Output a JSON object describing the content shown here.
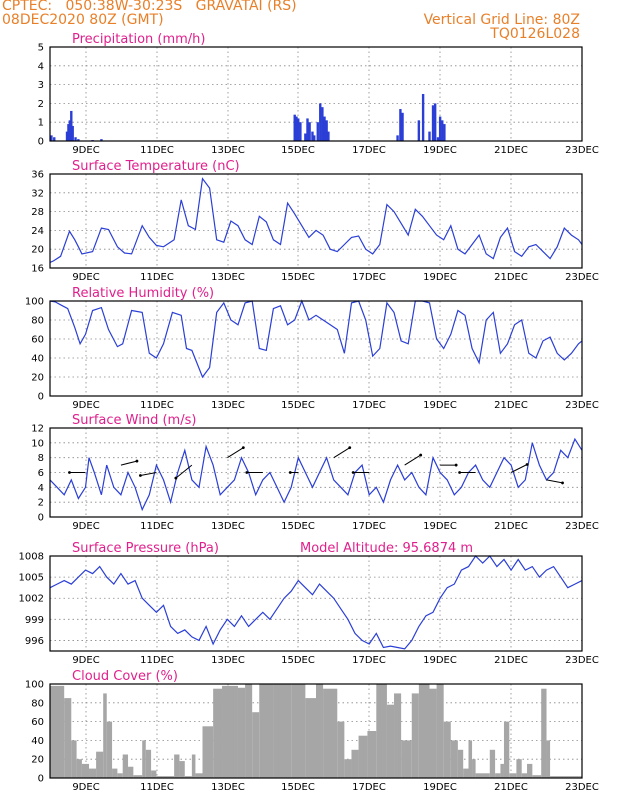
{
  "header": {
    "line1": "CPTEC:   050:38W-30:23S   GRAVATAI (RS)",
    "line2": "08DEC2020 80Z (GMT)",
    "grid_note": "Vertical Grid Line: 80Z",
    "code": "TQ0126L028"
  },
  "colors": {
    "header": "#e8802a",
    "title": "#e0208c",
    "line": "#2b3fd6",
    "cloud": "#a6a6a6"
  },
  "x_ticks": [
    "9DEC",
    "11DEC",
    "13DEC",
    "15DEC",
    "17DEC",
    "19DEC",
    "21DEC",
    "23DEC"
  ],
  "chart_data": [
    {
      "id": "precip",
      "type": "bar",
      "title": "Precipitation (mm/h)",
      "ylim": [
        0,
        5
      ],
      "yticks": [
        0,
        1,
        2,
        3,
        4,
        5
      ],
      "x_range_days": [
        0,
        15
      ],
      "bars": [
        [
          0.04,
          0.3
        ],
        [
          0.12,
          0.2
        ],
        [
          0.48,
          0.5
        ],
        [
          0.52,
          0.9
        ],
        [
          0.56,
          1.1
        ],
        [
          0.6,
          1.6
        ],
        [
          0.64,
          0.8
        ],
        [
          0.72,
          0.2
        ],
        [
          0.8,
          0.1
        ],
        [
          1.2,
          0.05
        ],
        [
          1.45,
          0.1
        ],
        [
          6.9,
          1.4
        ],
        [
          6.95,
          1.3
        ],
        [
          7.0,
          1.2
        ],
        [
          7.06,
          1.0
        ],
        [
          7.2,
          0.4
        ],
        [
          7.26,
          1.2
        ],
        [
          7.32,
          1.0
        ],
        [
          7.4,
          0.5
        ],
        [
          7.45,
          0.3
        ],
        [
          7.55,
          1.0
        ],
        [
          7.62,
          2.0
        ],
        [
          7.68,
          1.8
        ],
        [
          7.74,
          1.3
        ],
        [
          7.8,
          1.1
        ],
        [
          7.85,
          0.5
        ],
        [
          9.8,
          0.3
        ],
        [
          9.88,
          1.7
        ],
        [
          9.94,
          1.5
        ],
        [
          10.4,
          1.1
        ],
        [
          10.52,
          2.5
        ],
        [
          10.7,
          0.5
        ],
        [
          10.8,
          1.9
        ],
        [
          10.86,
          2.0
        ],
        [
          10.94,
          0.2
        ],
        [
          11.0,
          1.3
        ],
        [
          11.06,
          1.1
        ],
        [
          11.12,
          0.9
        ]
      ]
    },
    {
      "id": "temp",
      "type": "line",
      "title": "Surface Temperature (nC)",
      "ylim": [
        16,
        36
      ],
      "yticks": [
        16,
        20,
        24,
        28,
        32,
        36
      ],
      "x": [
        0,
        0.1,
        0.3,
        0.55,
        0.7,
        0.8,
        0.9,
        1.2,
        1.45,
        1.65,
        1.9,
        2.1,
        2.3,
        2.6,
        2.8,
        3.0,
        3.2,
        3.5,
        3.7,
        3.9,
        4.1,
        4.3,
        4.5,
        4.7,
        4.9,
        5.1,
        5.3,
        5.5,
        5.7,
        5.9,
        6.1,
        6.3,
        6.5,
        6.7,
        6.9,
        7.1,
        7.3,
        7.5,
        7.7,
        7.9,
        8.1,
        8.3,
        8.5,
        8.7,
        8.9,
        9.1,
        9.3,
        9.5,
        9.7,
        9.9,
        10.1,
        10.3,
        10.5,
        10.7,
        10.9,
        11.1,
        11.3,
        11.5,
        11.7,
        11.9,
        12.1,
        12.3,
        12.5,
        12.7,
        12.9,
        13.1,
        13.3,
        13.5,
        13.7,
        13.9,
        14.1,
        14.3,
        14.5,
        14.7,
        14.9,
        15.0
      ],
      "values": [
        17.2,
        17.5,
        18.5,
        23.8,
        22.0,
        20.5,
        19.0,
        19.5,
        24.5,
        24.2,
        20.5,
        19.2,
        19.0,
        25.0,
        22.5,
        20.8,
        20.5,
        22.0,
        30.5,
        25.0,
        24.2,
        35.0,
        33.0,
        22.0,
        21.5,
        26.0,
        25.0,
        22.0,
        21.0,
        27.0,
        25.8,
        22.0,
        21.0,
        29.8,
        27.5,
        25.0,
        22.5,
        24.0,
        23.0,
        20.0,
        19.5,
        21.0,
        22.5,
        22.8,
        20.0,
        19.0,
        21.0,
        29.5,
        28.0,
        25.5,
        23.0,
        28.5,
        27.0,
        25.0,
        23.0,
        22.0,
        25.0,
        20.0,
        19.0,
        21.0,
        23.0,
        19.0,
        18.0,
        22.5,
        24.5,
        19.5,
        18.5,
        20.5,
        21.0,
        19.5,
        18.0,
        20.5,
        24.5,
        23.0,
        22.0,
        21.0
      ]
    },
    {
      "id": "rh",
      "type": "line",
      "title": "Relative Humidity (%)",
      "ylim": [
        0,
        100
      ],
      "yticks": [
        0,
        20,
        40,
        60,
        80,
        100
      ],
      "x": [
        0,
        0.15,
        0.3,
        0.5,
        0.7,
        0.85,
        1.0,
        1.2,
        1.45,
        1.65,
        1.9,
        2.05,
        2.3,
        2.6,
        2.8,
        3.0,
        3.2,
        3.45,
        3.7,
        3.85,
        4.0,
        4.3,
        4.5,
        4.7,
        4.9,
        5.1,
        5.3,
        5.5,
        5.7,
        5.9,
        6.1,
        6.3,
        6.5,
        6.7,
        6.9,
        7.1,
        7.3,
        7.5,
        7.7,
        7.9,
        8.1,
        8.3,
        8.5,
        8.7,
        8.9,
        9.1,
        9.3,
        9.5,
        9.7,
        9.9,
        10.1,
        10.3,
        10.5,
        10.7,
        10.9,
        11.1,
        11.3,
        11.5,
        11.7,
        11.9,
        12.1,
        12.3,
        12.5,
        12.7,
        12.9,
        13.1,
        13.3,
        13.5,
        13.7,
        13.9,
        14.1,
        14.3,
        14.5,
        14.7,
        14.9,
        15.0
      ],
      "values": [
        100,
        99,
        96,
        92,
        72,
        55,
        65,
        90,
        93,
        70,
        52,
        55,
        90,
        88,
        45,
        40,
        55,
        88,
        85,
        50,
        48,
        20,
        30,
        88,
        98,
        80,
        75,
        98,
        100,
        50,
        48,
        92,
        95,
        75,
        80,
        100,
        80,
        85,
        80,
        75,
        70,
        45,
        98,
        100,
        80,
        42,
        50,
        98,
        88,
        58,
        55,
        100,
        100,
        98,
        60,
        50,
        65,
        90,
        85,
        50,
        35,
        80,
        88,
        45,
        55,
        75,
        80,
        45,
        40,
        58,
        62,
        45,
        38,
        45,
        55,
        58
      ]
    },
    {
      "id": "wind",
      "type": "line",
      "title": "Surface Wind (m/s)",
      "ylim": [
        0,
        12
      ],
      "yticks": [
        0,
        2,
        4,
        6,
        8,
        10,
        12
      ],
      "x": [
        0,
        0.2,
        0.4,
        0.6,
        0.8,
        1.0,
        1.1,
        1.25,
        1.45,
        1.6,
        1.8,
        2.0,
        2.2,
        2.4,
        2.6,
        2.8,
        3.0,
        3.2,
        3.4,
        3.6,
        3.8,
        4.0,
        4.2,
        4.4,
        4.6,
        4.8,
        5.0,
        5.2,
        5.4,
        5.6,
        5.8,
        6.0,
        6.2,
        6.4,
        6.6,
        6.8,
        7.0,
        7.2,
        7.4,
        7.6,
        7.8,
        8.0,
        8.2,
        8.4,
        8.6,
        8.8,
        9.0,
        9.2,
        9.4,
        9.6,
        9.8,
        10.0,
        10.2,
        10.4,
        10.6,
        10.8,
        11.0,
        11.2,
        11.4,
        11.6,
        11.8,
        12.0,
        12.2,
        12.4,
        12.6,
        12.8,
        13.0,
        13.2,
        13.4,
        13.6,
        13.8,
        14.0,
        14.2,
        14.4,
        14.6,
        14.8,
        15.0
      ],
      "values": [
        5,
        4,
        3,
        5,
        2.5,
        4,
        8,
        6,
        3,
        7,
        4,
        3,
        6,
        4,
        1,
        3,
        7,
        5,
        2,
        6,
        9,
        5,
        4,
        9.5,
        7,
        3,
        4,
        5,
        8,
        6,
        3,
        5,
        6,
        4,
        2,
        4,
        8,
        6,
        4,
        6,
        8,
        5,
        4,
        3,
        6,
        7,
        3,
        4,
        2,
        5,
        7,
        5,
        6,
        4,
        3,
        8,
        6,
        5,
        3,
        4,
        6,
        7,
        5,
        4,
        6,
        8,
        7,
        4,
        5,
        10,
        7,
        5,
        6,
        9,
        8,
        10.5,
        9
      ]
    },
    {
      "id": "pressure",
      "type": "line",
      "title": "Surface Pressure (hPa)",
      "annotation": "Model Altitude: 95.6874 m",
      "ylim": [
        994.5,
        1008
      ],
      "yticks": [
        996,
        999,
        1002,
        1005,
        1008
      ],
      "x": [
        0,
        0.2,
        0.4,
        0.6,
        0.8,
        1.0,
        1.2,
        1.4,
        1.6,
        1.8,
        2.0,
        2.2,
        2.4,
        2.6,
        2.8,
        3.0,
        3.2,
        3.4,
        3.6,
        3.8,
        4.0,
        4.2,
        4.4,
        4.6,
        4.8,
        5.0,
        5.2,
        5.4,
        5.6,
        5.8,
        6.0,
        6.2,
        6.4,
        6.6,
        6.8,
        7.0,
        7.2,
        7.4,
        7.6,
        7.8,
        8.0,
        8.2,
        8.4,
        8.6,
        8.8,
        9.0,
        9.2,
        9.4,
        9.6,
        9.8,
        10.0,
        10.2,
        10.4,
        10.6,
        10.8,
        11.0,
        11.2,
        11.4,
        11.6,
        11.8,
        12.0,
        12.2,
        12.4,
        12.6,
        12.8,
        13.0,
        13.2,
        13.4,
        13.6,
        13.8,
        14.0,
        14.2,
        14.4,
        14.6,
        14.8,
        15.0
      ],
      "values": [
        1003.5,
        1004,
        1004.5,
        1004,
        1005,
        1006,
        1005.5,
        1006.5,
        1005,
        1004,
        1005.5,
        1004,
        1004.5,
        1002,
        1001,
        1000,
        1001,
        998,
        997,
        997.5,
        996.5,
        996,
        998,
        995.5,
        997.5,
        999,
        998,
        999.5,
        998,
        999,
        1000,
        999,
        1000.5,
        1002,
        1003,
        1004.5,
        1003.5,
        1002.5,
        1004,
        1003,
        1002,
        1000.5,
        999,
        997,
        996,
        995.5,
        997,
        995,
        995.2,
        995,
        994.8,
        996,
        998,
        999.5,
        1000,
        1002,
        1003.5,
        1004,
        1006,
        1006.5,
        1008,
        1007,
        1008,
        1006.5,
        1007.5,
        1006,
        1007.5,
        1006,
        1006.5,
        1005,
        1006,
        1006.5,
        1005,
        1003.5,
        1004,
        1004.5
      ]
    },
    {
      "id": "cloud",
      "type": "bar",
      "title": "Cloud Cover (%)",
      "ylim": [
        0,
        100
      ],
      "yticks": [
        0,
        20,
        40,
        60,
        80,
        100
      ],
      "x_range_days": [
        0,
        15
      ],
      "segments": [
        [
          0,
          0.4,
          98
        ],
        [
          0.4,
          0.6,
          85
        ],
        [
          0.6,
          0.75,
          40
        ],
        [
          0.75,
          0.9,
          20
        ],
        [
          0.9,
          1.1,
          15
        ],
        [
          1.1,
          1.3,
          10
        ],
        [
          1.3,
          1.5,
          28
        ],
        [
          1.5,
          1.6,
          90
        ],
        [
          1.6,
          1.75,
          60
        ],
        [
          1.75,
          1.9,
          10
        ],
        [
          1.9,
          2.05,
          5
        ],
        [
          2.05,
          2.2,
          25
        ],
        [
          2.2,
          2.35,
          12
        ],
        [
          2.35,
          2.6,
          3
        ],
        [
          2.6,
          2.7,
          40
        ],
        [
          2.7,
          2.85,
          30
        ],
        [
          2.85,
          3.0,
          8
        ],
        [
          3.0,
          3.5,
          2
        ],
        [
          3.5,
          3.65,
          25
        ],
        [
          3.65,
          3.8,
          18
        ],
        [
          3.8,
          4.0,
          2
        ],
        [
          4.0,
          4.1,
          25
        ],
        [
          4.1,
          4.3,
          5
        ],
        [
          4.3,
          4.6,
          55
        ],
        [
          4.6,
          4.85,
          95
        ],
        [
          4.85,
          5.3,
          98
        ],
        [
          5.3,
          5.5,
          96
        ],
        [
          5.5,
          5.7,
          100
        ],
        [
          5.7,
          5.9,
          70
        ],
        [
          5.9,
          6.3,
          100
        ],
        [
          6.3,
          6.8,
          100
        ],
        [
          6.8,
          7.2,
          100
        ],
        [
          7.2,
          7.5,
          85
        ],
        [
          7.5,
          7.7,
          100
        ],
        [
          7.7,
          8.1,
          95
        ],
        [
          8.1,
          8.3,
          60
        ],
        [
          8.3,
          8.5,
          20
        ],
        [
          8.5,
          8.7,
          30
        ],
        [
          8.7,
          8.95,
          45
        ],
        [
          8.95,
          9.2,
          50
        ],
        [
          9.2,
          9.5,
          100
        ],
        [
          9.5,
          9.7,
          78
        ],
        [
          9.7,
          9.9,
          90
        ],
        [
          9.9,
          10.2,
          40
        ],
        [
          10.2,
          10.4,
          90
        ],
        [
          10.4,
          10.7,
          100
        ],
        [
          10.7,
          10.9,
          95
        ],
        [
          10.9,
          11.1,
          100
        ],
        [
          11.1,
          11.3,
          60
        ],
        [
          11.3,
          11.5,
          40
        ],
        [
          11.5,
          11.65,
          30
        ],
        [
          11.65,
          11.8,
          10
        ],
        [
          11.8,
          11.9,
          40
        ],
        [
          11.9,
          12.0,
          20
        ],
        [
          12.0,
          12.4,
          5
        ],
        [
          12.4,
          12.55,
          30
        ],
        [
          12.55,
          12.7,
          5
        ],
        [
          12.7,
          12.8,
          15
        ],
        [
          12.8,
          12.95,
          60
        ],
        [
          12.95,
          13.15,
          5
        ],
        [
          13.15,
          13.3,
          20
        ],
        [
          13.3,
          13.45,
          5
        ],
        [
          13.45,
          13.6,
          15
        ],
        [
          13.6,
          13.85,
          3
        ],
        [
          13.85,
          14.0,
          95
        ],
        [
          14.0,
          14.1,
          40
        ],
        [
          14.1,
          15.0,
          2
        ]
      ]
    }
  ]
}
